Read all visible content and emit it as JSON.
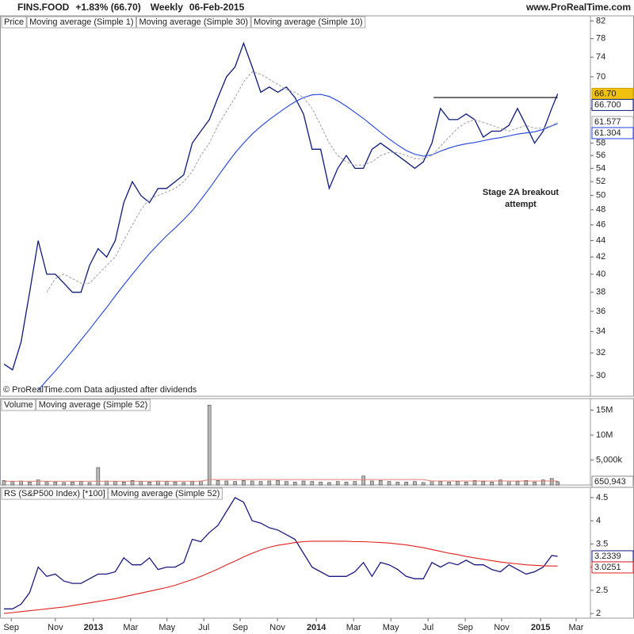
{
  "header": {
    "symbol": "FINS.FOOD",
    "change": "+1.83% (66.70)",
    "period": "Weekly",
    "date": "06-Feb-2015",
    "site": "www.ProRealTime.com"
  },
  "chart_data": [
    {
      "type": "line",
      "log": true,
      "x": [
        0,
        2,
        4,
        6,
        8,
        10,
        12,
        14,
        16,
        18,
        20,
        22,
        24,
        26,
        28,
        30,
        32,
        34,
        36,
        38,
        40,
        42,
        44,
        46,
        48,
        50,
        52,
        54,
        56,
        58,
        60,
        62,
        64,
        66,
        68,
        70,
        72,
        74,
        76,
        78,
        80,
        82,
        84,
        86,
        88,
        90,
        92,
        94,
        96,
        98,
        100,
        102,
        104,
        106,
        108,
        110,
        112,
        114,
        116,
        118,
        120,
        122,
        124,
        126,
        128,
        129.4
      ],
      "xlim": [
        -0.93,
        137.04
      ],
      "ylim": [
        28.3,
        83.2
      ],
      "yticks": [
        30,
        32,
        34,
        36,
        38,
        40,
        42,
        44,
        46,
        48,
        50,
        52,
        54,
        56,
        58,
        64,
        70,
        74,
        78,
        82
      ],
      "price": {
        "name": "Price",
        "last": 66.7,
        "last_label": "66.70"
      },
      "series": [
        {
          "name": "Moving average (Simple 1)",
          "color": "#0d1a7a",
          "last_label": "66.700",
          "values": [
            31,
            30.5,
            33,
            38,
            44,
            40,
            40,
            39,
            38,
            38,
            41,
            43,
            42,
            44,
            49,
            52,
            50,
            49,
            51,
            51,
            52,
            53,
            58,
            60,
            62,
            66,
            70,
            72,
            77,
            72,
            67,
            68,
            67,
            68,
            66,
            63,
            57,
            57,
            51,
            54,
            56,
            54,
            54,
            57,
            58,
            57,
            56,
            55,
            54,
            55,
            58,
            64,
            62,
            62,
            63,
            62,
            59,
            60,
            60,
            61,
            64,
            61,
            58,
            60,
            64,
            66.7
          ]
        },
        {
          "name": "Moving average (Simple 30)",
          "color": "#2244dd",
          "values": [
            null,
            null,
            null,
            null,
            28.8,
            29.6,
            30.4,
            31.3,
            32.2,
            33.2,
            34.2,
            35.3,
            36.4,
            37.6,
            38.8,
            40.0,
            41.2,
            42.4,
            43.5,
            44.6,
            45.6,
            46.7,
            47.9,
            49.4,
            51.0,
            52.8,
            54.6,
            56.4,
            58.0,
            59.5,
            60.8,
            62.0,
            63.1,
            64.2,
            65.2,
            66.0,
            66.5,
            66.6,
            66.2,
            65.4,
            64.4,
            63.3,
            62.2,
            61.0,
            59.8,
            58.7,
            57.7,
            56.8,
            56.2,
            55.9,
            56.1,
            56.7,
            57.2,
            57.6,
            57.9,
            58.1,
            58.4,
            58.7,
            58.9,
            59.2,
            59.5,
            59.7,
            59.9,
            60.3,
            60.9,
            61.304
          ]
        },
        {
          "name": "Moving average (Simple 10)",
          "color": "#a8a8a8",
          "dash": true,
          "values": [
            null,
            null,
            null,
            null,
            null,
            38,
            39.5,
            40,
            39.5,
            39,
            39,
            40,
            41,
            42,
            44,
            46,
            48,
            49.5,
            50,
            50.5,
            51,
            52,
            53.5,
            56,
            58,
            61,
            63.5,
            66,
            69,
            71,
            70.5,
            69.5,
            68.5,
            67.5,
            67,
            66,
            64,
            61,
            58,
            56,
            55,
            54.5,
            54.5,
            55,
            56,
            56.5,
            56.5,
            56,
            55.5,
            55.5,
            56,
            57.5,
            59,
            60.5,
            61.5,
            62,
            61.5,
            61,
            60.5,
            60,
            60.5,
            61,
            60.5,
            60.5,
            61,
            61.577
          ]
        }
      ],
      "resistance": {
        "y": 66,
        "x": [
          100.4,
          129.4
        ]
      },
      "annotation": [
        "Stage 2A breakout",
        "attempt"
      ],
      "note": "© ProRealTime.com  Data adjusted after dividends"
    },
    {
      "type": "bar",
      "ylim": [
        0,
        17300000
      ],
      "yticks": [
        {
          "value": 5000000,
          "label": "5,000k"
        },
        {
          "value": 10000000,
          "label": "10M"
        },
        {
          "value": 15000000,
          "label": "15M"
        }
      ],
      "series": [
        {
          "name": "Volume",
          "color": "#b8b8b8",
          "last_label": "650,943",
          "values": [
            900000,
            700000,
            800000,
            600000,
            1000000,
            700000,
            600000,
            500000,
            600000,
            700000,
            500000,
            3500000,
            800000,
            700000,
            600000,
            900000,
            700000,
            600000,
            800000,
            700000,
            600000,
            500000,
            700000,
            800000,
            16000000,
            900000,
            800000,
            700000,
            900000,
            800000,
            700000,
            800000,
            900000,
            700000,
            600000,
            800000,
            700000,
            600000,
            500000,
            700000,
            600000,
            700000,
            1800000,
            800000,
            900000,
            700000,
            600000,
            600000,
            700000,
            500000,
            800000,
            700000,
            600000,
            700000,
            600000,
            900000,
            700000,
            600000,
            1000000,
            800000,
            700000,
            900000,
            600000,
            1000000,
            1300000,
            650943
          ]
        },
        {
          "name": "Moving average (Simple 52)",
          "color": "#e08070",
          "line": true,
          "values": [
            750000,
            750000,
            750000,
            750000,
            750000,
            750000,
            750000,
            750000,
            750000,
            750000,
            750000,
            750000,
            750000,
            750000,
            750000,
            750000,
            750000,
            750000,
            750000,
            750000,
            750000,
            750000,
            750000,
            750000,
            1100000,
            1100000,
            1100000,
            1100000,
            1100000,
            1100000,
            1100000,
            1100000,
            1100000,
            1100000,
            1100000,
            1100000,
            1100000,
            1100000,
            1100000,
            1100000,
            1100000,
            1100000,
            1100000,
            1100000,
            1100000,
            1100000,
            1100000,
            1100000,
            1100000,
            1100000,
            800000,
            800000,
            800000,
            800000,
            800000,
            800000,
            800000,
            800000,
            800000,
            800000,
            800000,
            800000,
            800000,
            800000,
            800000,
            800000
          ]
        }
      ]
    },
    {
      "type": "line",
      "ylim": [
        1.9,
        4.72
      ],
      "yticks": [
        2,
        2.5,
        3,
        3.5,
        4,
        4.5
      ],
      "xticks": [
        {
          "value": 1.7,
          "label": "Sep"
        },
        {
          "value": 12.0,
          "label": "Nov"
        },
        {
          "value": 20.9,
          "label": "2013"
        },
        {
          "value": 29.6,
          "label": "Mar"
        },
        {
          "value": 38.1,
          "label": "May"
        },
        {
          "value": 46.7,
          "label": "Jul"
        },
        {
          "value": 55.2,
          "label": "Sep"
        },
        {
          "value": 63.9,
          "label": "Nov"
        },
        {
          "value": 73.0,
          "label": "2014"
        },
        {
          "value": 81.7,
          "label": "Mar"
        },
        {
          "value": 90.4,
          "label": "May"
        },
        {
          "value": 99.1,
          "label": "Jul"
        },
        {
          "value": 107.8,
          "label": "Sep"
        },
        {
          "value": 116.3,
          "label": "Nov"
        },
        {
          "value": 125.4,
          "label": "2015"
        },
        {
          "value": 133.7,
          "label": "Mar"
        }
      ],
      "series": [
        {
          "name": "RS (S&P500 Index) [*100]",
          "color": "#1a1a80",
          "values": [
            2.1,
            2.1,
            2.2,
            2.45,
            3.0,
            2.8,
            2.85,
            2.7,
            2.65,
            2.65,
            2.75,
            2.85,
            2.85,
            2.9,
            3.2,
            3.05,
            3.05,
            3.2,
            2.95,
            3.0,
            3.0,
            3.1,
            3.6,
            3.55,
            3.75,
            3.9,
            4.2,
            4.5,
            4.4,
            4.0,
            3.95,
            3.85,
            3.8,
            3.7,
            3.6,
            3.3,
            3.0,
            2.9,
            2.8,
            2.8,
            2.8,
            2.9,
            3.1,
            2.8,
            3.1,
            3.05,
            2.95,
            2.8,
            2.75,
            2.75,
            3.1,
            3.0,
            3.1,
            3.05,
            3.15,
            3.05,
            3.05,
            2.95,
            2.9,
            3.05,
            2.95,
            2.85,
            2.9,
            3.0,
            3.25,
            3.2339
          ]
        },
        {
          "name": "Moving average (Simple 52)",
          "color": "#e02020",
          "values": [
            2.0,
            2.02,
            2.04,
            2.06,
            2.08,
            2.1,
            2.12,
            2.14,
            2.17,
            2.2,
            2.23,
            2.26,
            2.29,
            2.32,
            2.36,
            2.4,
            2.44,
            2.48,
            2.52,
            2.56,
            2.61,
            2.67,
            2.73,
            2.8,
            2.88,
            2.96,
            3.05,
            3.13,
            3.22,
            3.3,
            3.37,
            3.43,
            3.47,
            3.5,
            3.53,
            3.55,
            3.56,
            3.56,
            3.56,
            3.56,
            3.56,
            3.55,
            3.55,
            3.54,
            3.53,
            3.52,
            3.5,
            3.48,
            3.45,
            3.42,
            3.38,
            3.34,
            3.3,
            3.27,
            3.23,
            3.2,
            3.17,
            3.14,
            3.11,
            3.09,
            3.07,
            3.05,
            3.04,
            3.03,
            3.025,
            3.0251
          ]
        }
      ]
    }
  ]
}
